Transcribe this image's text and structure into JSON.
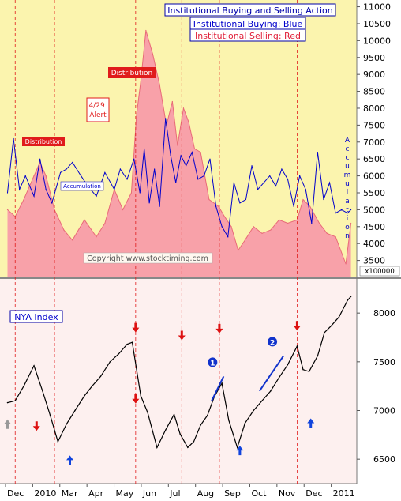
{
  "chart_data": [
    {
      "type": "area",
      "panel": "institutional",
      "title": "Institutional Buying and Selling Action",
      "legend": [
        {
          "label": "Institutional Buying: Blue",
          "color": "#0000cc"
        },
        {
          "label": "Institutional Selling: Red",
          "color": "#e0203a"
        }
      ],
      "ylim": [
        3000,
        11200
      ],
      "yticks": [
        3500,
        4000,
        4500,
        5000,
        5500,
        6000,
        6500,
        7000,
        7500,
        8000,
        8500,
        9000,
        9500,
        10000,
        10500,
        11000
      ],
      "y_multiplier_label": "x100000",
      "side_label": "Accumulation",
      "background": "#fbf4ae",
      "selling_color": "#f8a1a9",
      "buying_color": "#0000cc",
      "selling_x": [
        "2009-12-01",
        "2009-12-10",
        "2009-12-20",
        "2010-01-01",
        "2010-01-08",
        "2010-01-15",
        "2010-01-25",
        "2010-02-05",
        "2010-02-15",
        "2010-03-01",
        "2010-03-15",
        "2010-03-25",
        "2010-04-05",
        "2010-04-15",
        "2010-04-25",
        "2010-05-01",
        "2010-05-06",
        "2010-05-12",
        "2010-05-20",
        "2010-05-28",
        "2010-06-05",
        "2010-06-12",
        "2010-06-18",
        "2010-06-25",
        "2010-07-01",
        "2010-07-08",
        "2010-07-15",
        "2010-07-25",
        "2010-08-05",
        "2010-08-12",
        "2010-08-20",
        "2010-08-28",
        "2010-09-05",
        "2010-09-15",
        "2010-09-25",
        "2010-10-05",
        "2010-10-15",
        "2010-10-25",
        "2010-11-05",
        "2010-11-12",
        "2010-11-20",
        "2010-12-01",
        "2010-12-10",
        "2010-12-20",
        "2011-01-01",
        "2011-01-07"
      ],
      "selling": [
        5000,
        4800,
        5300,
        6000,
        6400,
        6000,
        5000,
        4400,
        4100,
        4700,
        4200,
        4600,
        5600,
        5000,
        5500,
        7800,
        8800,
        10300,
        9600,
        8700,
        7500,
        8200,
        6900,
        8000,
        7600,
        6800,
        6700,
        5300,
        5100,
        4800,
        4500,
        3800,
        4100,
        4500,
        4300,
        4400,
        4700,
        4600,
        4700,
        5300,
        5100,
        4600,
        4300,
        4200,
        3400,
        4600
      ],
      "buying_x": [
        "2009-12-01",
        "2009-12-08",
        "2009-12-15",
        "2009-12-22",
        "2010-01-01",
        "2010-01-08",
        "2010-01-15",
        "2010-01-22",
        "2010-02-01",
        "2010-02-08",
        "2010-02-15",
        "2010-02-25",
        "2010-03-05",
        "2010-03-15",
        "2010-03-25",
        "2010-04-05",
        "2010-04-12",
        "2010-04-20",
        "2010-04-28",
        "2010-05-05",
        "2010-05-10",
        "2010-05-16",
        "2010-05-22",
        "2010-05-28",
        "2010-06-04",
        "2010-06-10",
        "2010-06-16",
        "2010-06-22",
        "2010-06-28",
        "2010-07-05",
        "2010-07-12",
        "2010-07-19",
        "2010-07-26",
        "2010-08-02",
        "2010-08-09",
        "2010-08-16",
        "2010-08-23",
        "2010-08-30",
        "2010-09-06",
        "2010-09-13",
        "2010-09-20",
        "2010-09-27",
        "2010-10-04",
        "2010-10-11",
        "2010-10-18",
        "2010-10-25",
        "2010-11-01",
        "2010-11-08",
        "2010-11-15",
        "2010-11-22",
        "2010-11-29",
        "2010-12-06",
        "2010-12-13",
        "2010-12-20",
        "2010-12-27",
        "2011-01-03",
        "2011-01-07"
      ],
      "buying": [
        5500,
        7100,
        5600,
        6000,
        5400,
        6500,
        5600,
        5200,
        6100,
        6200,
        6400,
        6000,
        5700,
        5400,
        6100,
        5600,
        6200,
        5900,
        6500,
        5500,
        6800,
        5200,
        6200,
        5100,
        7700,
        6600,
        5800,
        6600,
        6300,
        6700,
        5900,
        6000,
        6500,
        5100,
        4500,
        4200,
        5800,
        5200,
        5300,
        6300,
        5600,
        5800,
        6000,
        5700,
        6200,
        5900,
        5100,
        6000,
        5600,
        4600,
        6700,
        5300,
        5800,
        4900,
        5000,
        4900,
        5000
      ],
      "dashed_lines": [
        "2009-12-10",
        "2010-01-25",
        "2010-04-30",
        "2010-06-14",
        "2010-06-23",
        "2010-08-06",
        "2010-11-05"
      ]
    },
    {
      "type": "line",
      "panel": "nya",
      "series": [
        {
          "name": "NYA Index",
          "color": "#000000"
        }
      ],
      "ylim": [
        6250,
        8350
      ],
      "yticks": [
        6500,
        7000,
        7500,
        8000
      ],
      "background": "#fdf0ef",
      "xlabels": [
        "Dec",
        "2010",
        "Mar",
        "Apr",
        "May",
        "Jun",
        "Jul",
        "Aug",
        "Sep",
        "Oct",
        "Nov",
        "Dec",
        "2011"
      ],
      "x": [
        "2009-12-01",
        "2009-12-10",
        "2009-12-20",
        "2010-01-01",
        "2010-01-11",
        "2010-01-20",
        "2010-01-29",
        "2010-02-08",
        "2010-02-18",
        "2010-03-01",
        "2010-03-10",
        "2010-03-20",
        "2010-03-31",
        "2010-04-10",
        "2010-04-20",
        "2010-04-26",
        "2010-05-06",
        "2010-05-14",
        "2010-05-25",
        "2010-06-04",
        "2010-06-14",
        "2010-06-21",
        "2010-06-30",
        "2010-07-07",
        "2010-07-15",
        "2010-07-23",
        "2010-07-31",
        "2010-08-09",
        "2010-08-17",
        "2010-08-27",
        "2010-09-05",
        "2010-09-15",
        "2010-09-25",
        "2010-10-05",
        "2010-10-15",
        "2010-10-25",
        "2010-11-05",
        "2010-11-12",
        "2010-11-19",
        "2010-11-29",
        "2010-12-07",
        "2010-12-15",
        "2010-12-24",
        "2011-01-03",
        "2011-01-07"
      ],
      "values": [
        7080,
        7100,
        7250,
        7460,
        7200,
        6950,
        6680,
        6860,
        7000,
        7150,
        7250,
        7350,
        7500,
        7580,
        7680,
        7700,
        7150,
        6980,
        6620,
        6800,
        6960,
        6760,
        6620,
        6680,
        6850,
        6950,
        7140,
        7280,
        6900,
        6620,
        6870,
        7000,
        7100,
        7200,
        7340,
        7470,
        7660,
        7420,
        7400,
        7560,
        7800,
        7870,
        7960,
        8130,
        8170
      ],
      "arrows": [
        {
          "date": "2009-12-01",
          "value": 6860,
          "dir": "up",
          "color": "#999999"
        },
        {
          "date": "2010-01-04",
          "value": 6840,
          "dir": "down",
          "color": "#dd1111"
        },
        {
          "date": "2010-02-12",
          "value": 6490,
          "dir": "up",
          "color": "#1144dd"
        },
        {
          "date": "2010-04-30",
          "value": 7850,
          "dir": "down",
          "color": "#dd1111"
        },
        {
          "date": "2010-04-30",
          "value": 7120,
          "dir": "down",
          "color": "#dd1111"
        },
        {
          "date": "2010-06-23",
          "value": 7770,
          "dir": "down",
          "color": "#dd1111"
        },
        {
          "date": "2010-08-06",
          "value": 7840,
          "dir": "down",
          "color": "#dd1111"
        },
        {
          "date": "2010-08-30",
          "value": 6590,
          "dir": "up",
          "color": "#1144dd"
        },
        {
          "date": "2010-11-05",
          "value": 7870,
          "dir": "down",
          "color": "#dd1111"
        },
        {
          "date": "2010-11-21",
          "value": 6870,
          "dir": "up",
          "color": "#1144dd"
        }
      ],
      "trendlines": [
        {
          "label": "1",
          "from": [
            "2010-07-28",
            7100
          ],
          "to": [
            "2010-08-11",
            7350
          ]
        },
        {
          "label": "2",
          "from": [
            "2010-09-22",
            7200
          ],
          "to": [
            "2010-10-20",
            7560
          ]
        }
      ]
    }
  ],
  "annotations": {
    "distribution_1": "Distribution",
    "distribution_2": "Distribution",
    "alert": "4/29 Alert",
    "accumulation": "Accumulation",
    "copyright": "Copyright www.stocktiming.com",
    "nya_label": "NYA Index",
    "multiplier": "x100000"
  }
}
